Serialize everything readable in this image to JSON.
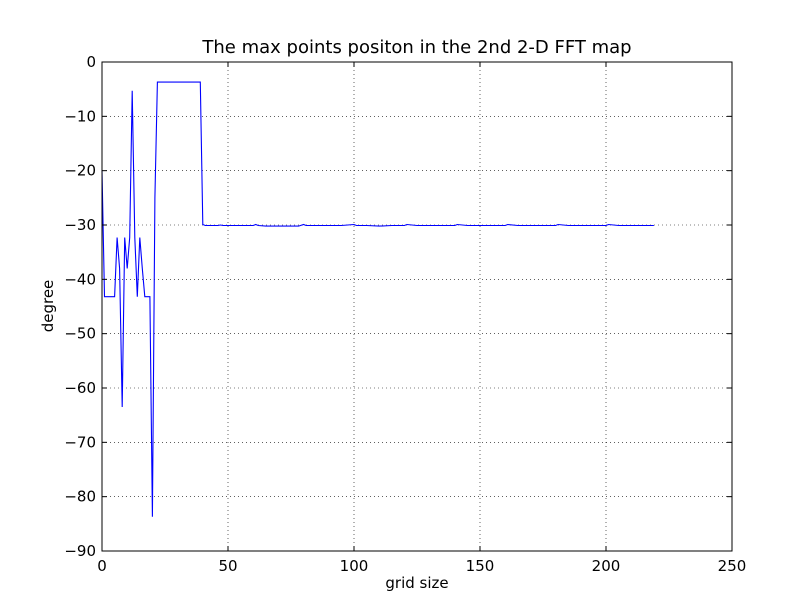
{
  "chart_data": {
    "type": "line",
    "title": "The max points positon in the 2nd 2-D FFT map",
    "xlabel": "grid size",
    "ylabel": "degree",
    "xlim": [
      0,
      250
    ],
    "ylim": [
      -90,
      0
    ],
    "xticks": [
      0,
      50,
      100,
      150,
      200,
      250
    ],
    "yticks": [
      0,
      -10,
      -20,
      -30,
      -40,
      -50,
      -60,
      -70,
      -80,
      -90
    ],
    "xtick_labels": [
      "0",
      "50",
      "100",
      "150",
      "200",
      "250"
    ],
    "ytick_labels": [
      "0",
      "−10",
      "−20",
      "−30",
      "−40",
      "−50",
      "−60",
      "−70",
      "−80",
      "−90"
    ],
    "grid": true,
    "legend": "none",
    "series": [
      {
        "color": "#0000ff",
        "x": [
          0,
          1,
          2,
          3,
          4,
          5,
          6,
          7,
          8,
          9,
          10,
          11,
          12,
          13,
          14,
          15,
          16,
          17,
          18,
          19,
          20,
          21,
          22,
          23,
          24,
          25,
          26,
          27,
          28,
          29,
          30,
          31,
          32,
          33,
          34,
          35,
          36,
          37,
          38,
          39,
          40,
          41,
          42,
          43,
          44,
          45,
          46,
          47,
          48,
          49,
          50,
          55,
          60,
          61,
          62,
          65,
          70,
          75,
          78,
          80,
          81,
          85,
          90,
          95,
          100,
          101,
          105,
          110,
          115,
          120,
          121,
          125,
          130,
          135,
          140,
          141,
          145,
          150,
          155,
          160,
          161,
          165,
          170,
          175,
          180,
          181,
          185,
          190,
          195,
          200,
          201,
          205,
          210,
          215,
          219
        ],
        "y": [
          -20,
          -43.2,
          -43.2,
          -43.2,
          -43.2,
          -43.2,
          -32.3,
          -38,
          -63.5,
          -32.3,
          -38,
          -32.3,
          -5.3,
          -32.3,
          -43.2,
          -32.3,
          -38,
          -43.2,
          -43.2,
          -43.2,
          -83.7,
          -25,
          -3.7,
          -3.7,
          -3.7,
          -3.7,
          -3.7,
          -3.7,
          -3.7,
          -3.7,
          -3.7,
          -3.7,
          -3.7,
          -3.7,
          -3.7,
          -3.7,
          -3.7,
          -3.7,
          -3.7,
          -3.7,
          -29.9,
          -30.1,
          -30.1,
          -30.1,
          -30.1,
          -30.1,
          -30.1,
          -30.0,
          -30.1,
          -30.1,
          -30.1,
          -30.1,
          -30.1,
          -29.9,
          -30.1,
          -30.2,
          -30.2,
          -30.2,
          -30.2,
          -29.9,
          -30.1,
          -30.1,
          -30.1,
          -30.1,
          -29.9,
          -30.1,
          -30.1,
          -30.2,
          -30.1,
          -30.1,
          -29.9,
          -30.1,
          -30.1,
          -30.1,
          -30.1,
          -29.9,
          -30.1,
          -30.1,
          -30.1,
          -30.1,
          -29.9,
          -30.1,
          -30.1,
          -30.1,
          -30.1,
          -29.9,
          -30.1,
          -30.1,
          -30.1,
          -30.1,
          -29.9,
          -30.1,
          -30.1,
          -30.1,
          -30.1
        ]
      }
    ]
  }
}
